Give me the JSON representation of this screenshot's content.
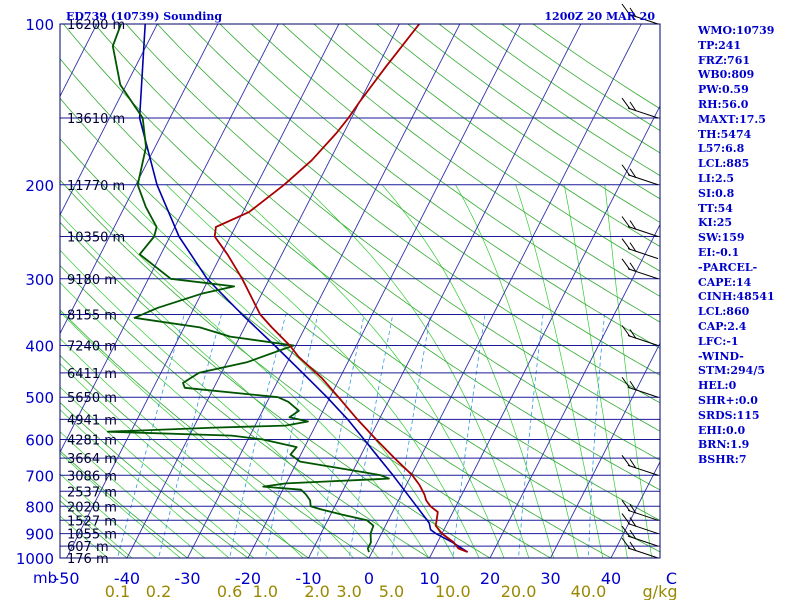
{
  "header": {
    "station": "ED739 (10739) Sounding",
    "time": "1200Z 20 MAR 20"
  },
  "indices": [
    "WMO:10739",
    "TP:241",
    "FRZ:761",
    "WB0:809",
    "PW:0.59",
    "RH:56.0",
    "MAXT:17.5",
    "TH:5474",
    "L57:6.8",
    "LCL:885",
    "LI:2.5",
    "SI:0.8",
    "TT:54",
    "KI:25",
    "SW:159",
    "EI:-0.1",
    "-PARCEL-",
    "CAPE:14",
    "CINH:48541",
    "LCL:860",
    "CAP:2.4",
    "LFC:-1",
    "-WIND-",
    "STM:294/5",
    "HEL:0",
    "SHR+:0.0",
    "SRDS:115",
    "EHI:0.0",
    "BRN:1.9",
    "BSHR:7"
  ],
  "colors": {
    "isobar": "#1a1a99",
    "isotherm": "#3333aa",
    "dry_adiabat": "#33aa33",
    "moist_adiabat": "#33cc33",
    "mixing_ratio": "#3399dd",
    "temperature": "#aa0000",
    "dewpoint": "#005500",
    "parcel": "#0000aa",
    "axis_text": "#0000cc",
    "mixing_text": "#998800",
    "wind_barb": "#000000"
  },
  "chart_data": {
    "type": "skew-t",
    "pressure_unit": "mb",
    "temperature_unit": "C",
    "mixing_ratio_unit": "g/kg",
    "pressure_levels": [
      100,
      200,
      300,
      400,
      500,
      600,
      700,
      800,
      900,
      1000
    ],
    "temperature_ticks": [
      -50,
      -40,
      -30,
      -20,
      -10,
      0,
      10,
      20,
      30,
      40
    ],
    "last_temperature_tick": "C",
    "mixing_ratio_ticks": [
      "0.1",
      "0.2",
      "0.6",
      "1.0",
      "2.0",
      "3.0",
      "5.0",
      "10.0",
      "20.0",
      "40.0"
    ],
    "mixing_ratio_values": [
      0.1,
      0.2,
      0.6,
      1.0,
      2.0,
      3.0,
      5.0,
      10.0,
      20.0,
      40.0
    ],
    "height_labels": [
      {
        "p": 100,
        "label": "16200 m"
      },
      {
        "p": 150,
        "label": "13610 m"
      },
      {
        "p": 200,
        "label": "11770 m"
      },
      {
        "p": 250,
        "label": "10350 m"
      },
      {
        "p": 300,
        "label": "9180 m"
      },
      {
        "p": 350,
        "label": "8155 m"
      },
      {
        "p": 400,
        "label": "7240 m"
      },
      {
        "p": 450,
        "label": "6411 m"
      },
      {
        "p": 500,
        "label": "5650 m"
      },
      {
        "p": 550,
        "label": "4941 m"
      },
      {
        "p": 600,
        "label": "4281 m"
      },
      {
        "p": 650,
        "label": "3664 m"
      },
      {
        "p": 700,
        "label": "3086 m"
      },
      {
        "p": 750,
        "label": "2537 m"
      },
      {
        "p": 800,
        "label": "2020 m"
      },
      {
        "p": 850,
        "label": "1527 m"
      },
      {
        "p": 900,
        "label": "1055 m"
      },
      {
        "p": 950,
        "label": "607 m"
      },
      {
        "p": 1000,
        "label": "176 m"
      }
    ],
    "temperature_profile": [
      [
        975,
        15.8
      ],
      [
        960,
        14.0
      ],
      [
        935,
        12.7
      ],
      [
        900,
        10.0
      ],
      [
        870,
        8.3
      ],
      [
        850,
        8.0
      ],
      [
        820,
        7.5
      ],
      [
        800,
        5.8
      ],
      [
        780,
        4.6
      ],
      [
        760,
        3.8
      ],
      [
        730,
        2.2
      ],
      [
        700,
        0.2
      ],
      [
        650,
        -4.2
      ],
      [
        600,
        -8.8
      ],
      [
        550,
        -13.6
      ],
      [
        500,
        -18.6
      ],
      [
        460,
        -23.0
      ],
      [
        420,
        -28.6
      ],
      [
        400,
        -31.0
      ],
      [
        370,
        -35.5
      ],
      [
        350,
        -38.5
      ],
      [
        330,
        -40.8
      ],
      [
        300,
        -44.5
      ],
      [
        270,
        -49.0
      ],
      [
        250,
        -52.6
      ],
      [
        240,
        -53.2
      ],
      [
        225,
        -49.0
      ],
      [
        200,
        -45.5
      ],
      [
        180,
        -43.0
      ],
      [
        160,
        -41.2
      ],
      [
        150,
        -40.5
      ],
      [
        140,
        -40.0
      ],
      [
        120,
        -38.6
      ],
      [
        100,
        -36.7
      ]
    ],
    "dewpoint_profile": [
      [
        975,
        -0.5
      ],
      [
        960,
        -1.0
      ],
      [
        935,
        -1.0
      ],
      [
        900,
        -1.8
      ],
      [
        870,
        -2.0
      ],
      [
        850,
        -3.5
      ],
      [
        830,
        -8.0
      ],
      [
        810,
        -12.2
      ],
      [
        800,
        -14.0
      ],
      [
        780,
        -14.6
      ],
      [
        760,
        -15.8
      ],
      [
        745,
        -17.0
      ],
      [
        735,
        -23.5
      ],
      [
        725,
        -20.0
      ],
      [
        710,
        -3.4
      ],
      [
        700,
        -5.0
      ],
      [
        690,
        -8.5
      ],
      [
        660,
        -19.5
      ],
      [
        640,
        -21.7
      ],
      [
        620,
        -21.3
      ],
      [
        600,
        -27.5
      ],
      [
        590,
        -33.0
      ],
      [
        580,
        -53.8
      ],
      [
        570,
        -36.5
      ],
      [
        565,
        -25.0
      ],
      [
        555,
        -21.6
      ],
      [
        545,
        -25.0
      ],
      [
        530,
        -24.0
      ],
      [
        510,
        -26.5
      ],
      [
        500,
        -28.6
      ],
      [
        480,
        -44.8
      ],
      [
        470,
        -45.5
      ],
      [
        450,
        -43.7
      ],
      [
        430,
        -36.7
      ],
      [
        400,
        -30.4
      ],
      [
        385,
        -41.6
      ],
      [
        370,
        -47.4
      ],
      [
        355,
        -59.0
      ],
      [
        340,
        -56.0
      ],
      [
        320,
        -50.0
      ],
      [
        310,
        -45.2
      ],
      [
        300,
        -56.3
      ],
      [
        270,
        -63.5
      ],
      [
        250,
        -62.6
      ],
      [
        240,
        -63.0
      ],
      [
        220,
        -66.5
      ],
      [
        200,
        -69.7
      ],
      [
        170,
        -71.5
      ],
      [
        150,
        -74.5
      ],
      [
        130,
        -81.0
      ],
      [
        110,
        -85.5
      ],
      [
        100,
        -86.0
      ]
    ],
    "parcel_profile": [
      [
        975,
        15.8
      ],
      [
        935,
        12.5
      ],
      [
        900,
        9.0
      ],
      [
        885,
        7.8
      ],
      [
        860,
        7.0
      ],
      [
        800,
        3.5
      ],
      [
        700,
        -3.0
      ],
      [
        600,
        -10.8
      ],
      [
        550,
        -15.2
      ],
      [
        500,
        -20.5
      ],
      [
        450,
        -26.6
      ],
      [
        400,
        -33.5
      ],
      [
        350,
        -41.5
      ],
      [
        300,
        -50.3
      ],
      [
        250,
        -58.5
      ],
      [
        200,
        -66.5
      ],
      [
        150,
        -75.0
      ],
      [
        100,
        -82.0
      ]
    ],
    "wind_barb_levels": [
      100,
      150,
      200,
      250,
      275,
      300,
      400,
      500,
      700,
      850,
      900,
      950,
      1000
    ]
  }
}
